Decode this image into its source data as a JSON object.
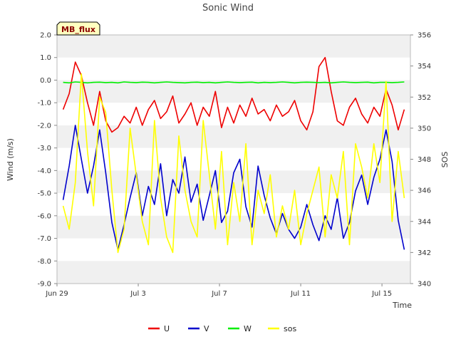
{
  "chart_data": {
    "type": "line",
    "title": "Sonic Wind",
    "badge": "MB_flux",
    "xlabel": "Time",
    "ylabel": "Wind (m/s)",
    "y2label": "SOS",
    "ylim": [
      -9.0,
      2.0
    ],
    "y2lim": [
      340,
      356
    ],
    "xlim": [
      0,
      17.4
    ],
    "x_ticks": [
      {
        "pos": 0,
        "label": "Jun 29"
      },
      {
        "pos": 4,
        "label": "Jul 3"
      },
      {
        "pos": 8,
        "label": "Jul 7"
      },
      {
        "pos": 12,
        "label": "Jul 11"
      },
      {
        "pos": 16,
        "label": "Jul 15"
      }
    ],
    "y_ticks": [
      "-9.0",
      "-8.0",
      "-7.0",
      "-6.0",
      "-5.0",
      "-4.0",
      "-3.0",
      "-2.0",
      "-1.0",
      "0.0",
      "1.0",
      "2.0"
    ],
    "y2_ticks": [
      "340",
      "342",
      "344",
      "346",
      "348",
      "350",
      "352",
      "354",
      "356"
    ],
    "x": [
      0.3,
      0.6,
      0.9,
      1.2,
      1.5,
      1.8,
      2.1,
      2.4,
      2.7,
      3.0,
      3.3,
      3.6,
      3.9,
      4.2,
      4.5,
      4.8,
      5.1,
      5.4,
      5.7,
      6.0,
      6.3,
      6.6,
      6.9,
      7.2,
      7.5,
      7.8,
      8.1,
      8.4,
      8.7,
      9.0,
      9.3,
      9.6,
      9.9,
      10.2,
      10.5,
      10.8,
      11.1,
      11.4,
      11.7,
      12.0,
      12.3,
      12.6,
      12.9,
      13.2,
      13.5,
      13.8,
      14.1,
      14.4,
      14.7,
      15.0,
      15.3,
      15.6,
      15.9,
      16.2,
      16.5,
      16.8,
      17.1
    ],
    "series": [
      {
        "name": "U",
        "color": "#ee0000",
        "axis": "left",
        "values": [
          -1.3,
          -0.6,
          0.8,
          0.2,
          -1.0,
          -2.0,
          -0.5,
          -1.8,
          -2.3,
          -2.1,
          -1.6,
          -1.9,
          -1.2,
          -2.0,
          -1.3,
          -0.9,
          -1.7,
          -1.4,
          -0.7,
          -1.9,
          -1.5,
          -1.0,
          -2.0,
          -1.2,
          -1.6,
          -0.5,
          -2.1,
          -1.2,
          -1.9,
          -1.1,
          -1.6,
          -0.8,
          -1.5,
          -1.3,
          -1.8,
          -1.1,
          -1.6,
          -1.4,
          -0.9,
          -1.8,
          -2.2,
          -1.4,
          0.6,
          1.0,
          -0.5,
          -1.8,
          -2.0,
          -1.2,
          -0.8,
          -1.5,
          -1.9,
          -1.2,
          -1.6,
          -0.4,
          -1.1,
          -2.2,
          -1.3
        ]
      },
      {
        "name": "V",
        "color": "#0000cc",
        "axis": "left",
        "values": [
          -5.3,
          -3.8,
          -2.0,
          -3.5,
          -5.0,
          -3.8,
          -2.2,
          -4.1,
          -6.3,
          -7.5,
          -6.4,
          -5.2,
          -4.1,
          -6.0,
          -4.7,
          -5.5,
          -3.7,
          -6.0,
          -4.4,
          -5.0,
          -3.4,
          -5.4,
          -4.6,
          -6.2,
          -5.1,
          -4.0,
          -6.3,
          -5.8,
          -4.1,
          -3.5,
          -5.6,
          -6.5,
          -3.8,
          -5.1,
          -6.1,
          -6.8,
          -5.9,
          -6.6,
          -7.0,
          -6.5,
          -5.5,
          -6.4,
          -7.1,
          -6.0,
          -6.6,
          -5.2,
          -7.0,
          -6.3,
          -4.9,
          -4.2,
          -5.5,
          -4.3,
          -3.5,
          -2.2,
          -3.6,
          -6.2,
          -7.5
        ]
      },
      {
        "name": "W",
        "color": "#00ee00",
        "axis": "left",
        "values": [
          -0.1,
          -0.12,
          -0.08,
          -0.1,
          -0.12,
          -0.1,
          -0.09,
          -0.11,
          -0.1,
          -0.12,
          -0.08,
          -0.1,
          -0.11,
          -0.09,
          -0.1,
          -0.12,
          -0.1,
          -0.08,
          -0.1,
          -0.11,
          -0.12,
          -0.1,
          -0.09,
          -0.11,
          -0.1,
          -0.12,
          -0.1,
          -0.08,
          -0.1,
          -0.11,
          -0.1,
          -0.09,
          -0.12,
          -0.1,
          -0.11,
          -0.1,
          -0.08,
          -0.1,
          -0.12,
          -0.1,
          -0.09,
          -0.1,
          -0.11,
          -0.1,
          -0.12,
          -0.1,
          -0.08,
          -0.1,
          -0.11,
          -0.1,
          -0.09,
          -0.12,
          -0.1,
          -0.1,
          -0.11,
          -0.1,
          -0.08
        ]
      },
      {
        "name": "sos",
        "color": "#ffff00",
        "axis": "right",
        "values": [
          345.0,
          343.5,
          346.5,
          353.5,
          348.5,
          345.0,
          352.0,
          351.0,
          346.0,
          342.0,
          343.5,
          350.0,
          347.0,
          344.0,
          342.5,
          350.5,
          345.5,
          343.0,
          342.0,
          349.5,
          346.0,
          344.0,
          343.0,
          350.5,
          347.0,
          343.5,
          348.5,
          342.5,
          346.5,
          344.0,
          349.0,
          342.5,
          346.0,
          344.5,
          347.0,
          343.0,
          345.0,
          343.5,
          346.0,
          342.5,
          344.5,
          346.0,
          347.5,
          343.0,
          347.0,
          345.5,
          348.5,
          342.5,
          349.0,
          347.5,
          345.5,
          349.0,
          346.5,
          353.0,
          344.0,
          348.5,
          345.5
        ]
      }
    ],
    "legend_position": "bottom-center"
  }
}
